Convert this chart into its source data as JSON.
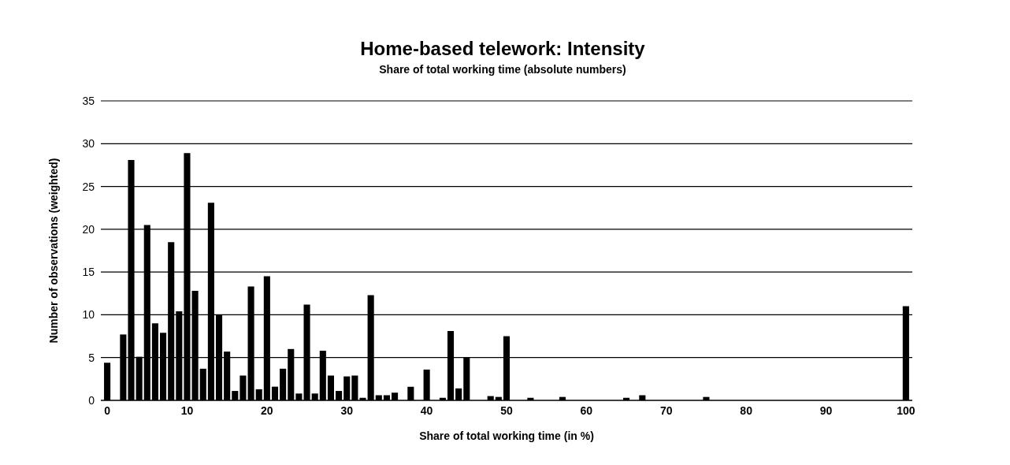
{
  "chart_data": {
    "type": "bar",
    "title": "Home-based telework: Intensity",
    "subtitle": "Share of total working time (absolute numbers)",
    "xlabel": "Share of total working time (in %)",
    "ylabel": "Number of observations (weighted)",
    "x": [
      0,
      2,
      3,
      4,
      5,
      6,
      7,
      8,
      9,
      10,
      11,
      12,
      13,
      14,
      15,
      16,
      17,
      18,
      19,
      20,
      21,
      22,
      23,
      24,
      25,
      26,
      27,
      28,
      29,
      30,
      31,
      32,
      33,
      34,
      35,
      36,
      38,
      40,
      42,
      43,
      44,
      45,
      48,
      49,
      50,
      53,
      57,
      65,
      67,
      75,
      100
    ],
    "values": [
      4.4,
      7.7,
      28.1,
      5.1,
      20.5,
      9,
      7.9,
      18.5,
      10.4,
      28.9,
      12.8,
      3.7,
      23.1,
      10,
      5.7,
      1.1,
      2.9,
      13.3,
      1.3,
      14.5,
      1.6,
      3.7,
      6,
      0.8,
      11.2,
      0.8,
      5.8,
      2.9,
      1.1,
      2.8,
      2.9,
      0.3,
      12.3,
      0.6,
      0.6,
      0.9,
      1.6,
      3.6,
      0.3,
      8.1,
      1.4,
      5,
      0.5,
      0.4,
      7.5,
      0.3,
      0.4,
      0.3,
      0.6,
      0.4,
      11
    ],
    "color": "#000000",
    "xlim": [
      -0.8,
      100.8
    ],
    "xticks": [
      0,
      10,
      20,
      30,
      40,
      50,
      60,
      70,
      80,
      90,
      100
    ],
    "ylim": [
      0,
      35
    ],
    "yticks": [
      0,
      5,
      10,
      15,
      20,
      25,
      30,
      35
    ],
    "grid": "y"
  }
}
